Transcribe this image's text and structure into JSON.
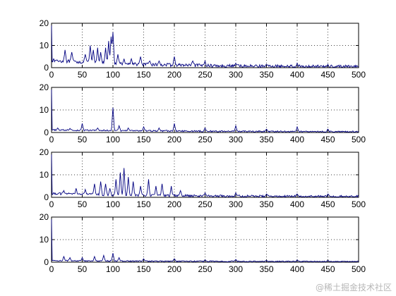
{
  "watermark": "@稀土掘金技术社区",
  "chart_data": [
    {
      "type": "line",
      "xlim": [
        0,
        500
      ],
      "ylim": [
        0,
        20
      ],
      "xticks": [
        0,
        50,
        100,
        150,
        200,
        250,
        300,
        350,
        400,
        450,
        500
      ],
      "yticks": [
        0,
        10,
        20
      ],
      "grid": "dotted",
      "series": [
        {
          "color": "#000080",
          "peaks": [
            [
              22,
              8
            ],
            [
              33,
              7
            ],
            [
              55,
              6
            ],
            [
              63,
              10
            ],
            [
              68,
              8
            ],
            [
              75,
              9
            ],
            [
              80,
              7
            ],
            [
              88,
              9
            ],
            [
              93,
              12
            ],
            [
              97,
              14
            ],
            [
              100,
              16
            ],
            [
              108,
              6
            ],
            [
              118,
              4
            ],
            [
              130,
              4
            ],
            [
              145,
              5
            ],
            [
              160,
              3
            ],
            [
              175,
              3
            ],
            [
              200,
              5
            ],
            [
              230,
              3
            ],
            [
              250,
              3
            ],
            [
              300,
              2
            ],
            [
              350,
              1.5
            ],
            [
              400,
              2
            ],
            [
              450,
              1.5
            ]
          ],
          "base": 3.0,
          "decay": 0.006,
          "noise": 1.4
        }
      ]
    },
    {
      "type": "line",
      "xlim": [
        0,
        500
      ],
      "ylim": [
        0,
        20
      ],
      "xticks": [
        0,
        50,
        100,
        150,
        200,
        250,
        300,
        350,
        400,
        450,
        500
      ],
      "yticks": [
        0,
        10,
        20
      ],
      "grid": "dotted",
      "series": [
        {
          "color": "#000080",
          "peaks": [
            [
              10,
              2
            ],
            [
              30,
              1.8
            ],
            [
              50,
              4
            ],
            [
              75,
              2
            ],
            [
              100,
              11
            ],
            [
              110,
              3
            ],
            [
              125,
              2
            ],
            [
              150,
              2.5
            ],
            [
              175,
              2
            ],
            [
              200,
              4
            ],
            [
              250,
              2
            ],
            [
              300,
              3
            ],
            [
              350,
              1.5
            ],
            [
              400,
              2.5
            ],
            [
              450,
              1.5
            ]
          ],
          "base": 1.0,
          "decay": 0.003,
          "noise": 0.6
        }
      ]
    },
    {
      "type": "line",
      "xlim": [
        0,
        500
      ],
      "ylim": [
        0,
        20
      ],
      "xticks": [
        0,
        50,
        100,
        150,
        200,
        250,
        300,
        350,
        400,
        450,
        500
      ],
      "yticks": [
        0,
        10,
        20
      ],
      "grid": "dotted",
      "series": [
        {
          "color": "#000080",
          "peaks": [
            [
              20,
              3
            ],
            [
              40,
              4
            ],
            [
              55,
              3.5
            ],
            [
              70,
              6
            ],
            [
              80,
              7
            ],
            [
              88,
              6
            ],
            [
              95,
              4
            ],
            [
              105,
              8
            ],
            [
              112,
              11
            ],
            [
              118,
              13
            ],
            [
              125,
              9
            ],
            [
              133,
              7
            ],
            [
              145,
              5
            ],
            [
              158,
              8
            ],
            [
              170,
              5
            ],
            [
              180,
              6
            ],
            [
              195,
              5
            ],
            [
              210,
              3
            ],
            [
              250,
              2
            ],
            [
              300,
              2
            ],
            [
              350,
              1.5
            ],
            [
              400,
              1.5
            ],
            [
              450,
              1.5
            ]
          ],
          "base": 1.5,
          "decay": 0.005,
          "noise": 1.0
        }
      ]
    },
    {
      "type": "line",
      "xlim": [
        0,
        500
      ],
      "ylim": [
        0,
        20
      ],
      "xticks": [
        0,
        50,
        100,
        150,
        200,
        250,
        300,
        350,
        400,
        450,
        500
      ],
      "yticks": [
        0,
        10,
        20
      ],
      "grid": "dotted",
      "series": [
        {
          "color": "#000080",
          "peaks": [
            [
              20,
              2.5
            ],
            [
              30,
              2
            ],
            [
              50,
              2
            ],
            [
              70,
              2.5
            ],
            [
              85,
              3
            ],
            [
              100,
              4
            ],
            [
              110,
              2
            ],
            [
              150,
              1.5
            ],
            [
              200,
              1.5
            ],
            [
              250,
              1
            ],
            [
              300,
              1.2
            ],
            [
              350,
              0.8
            ],
            [
              400,
              1
            ],
            [
              450,
              0.8
            ]
          ],
          "base": 0.6,
          "decay": 0.003,
          "noise": 0.5
        }
      ]
    }
  ]
}
